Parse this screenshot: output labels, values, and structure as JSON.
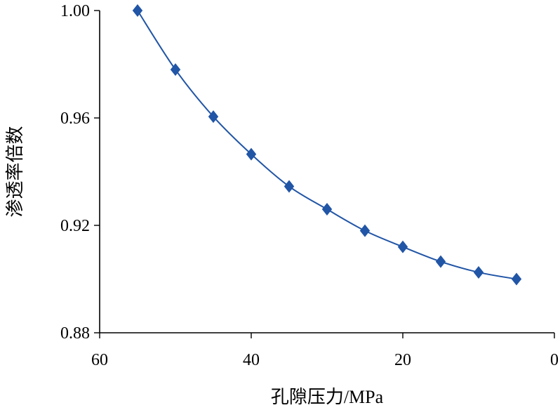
{
  "chart_data": {
    "type": "scatter",
    "title": "",
    "xlabel": "孔隙压力/MPa",
    "ylabel": "渗透率倍数",
    "xlim": [
      60,
      0
    ],
    "ylim": [
      0.88,
      1.0
    ],
    "x_reversed": true,
    "x_ticks": [
      "60",
      "40",
      "20",
      "0"
    ],
    "y_ticks": [
      "1.00",
      "0.96",
      "0.92",
      "0.88"
    ],
    "grid": false,
    "legend": "none",
    "marker": "diamond",
    "smooth_line": true,
    "color": "#2155a6",
    "series": [
      {
        "x": [
          55,
          50,
          45,
          40,
          35,
          30,
          25,
          20,
          15,
          10,
          5
        ],
        "y": [
          1.0,
          0.978,
          0.9605,
          0.9465,
          0.9345,
          0.926,
          0.918,
          0.912,
          0.9065,
          0.9025,
          0.9
        ]
      }
    ]
  }
}
